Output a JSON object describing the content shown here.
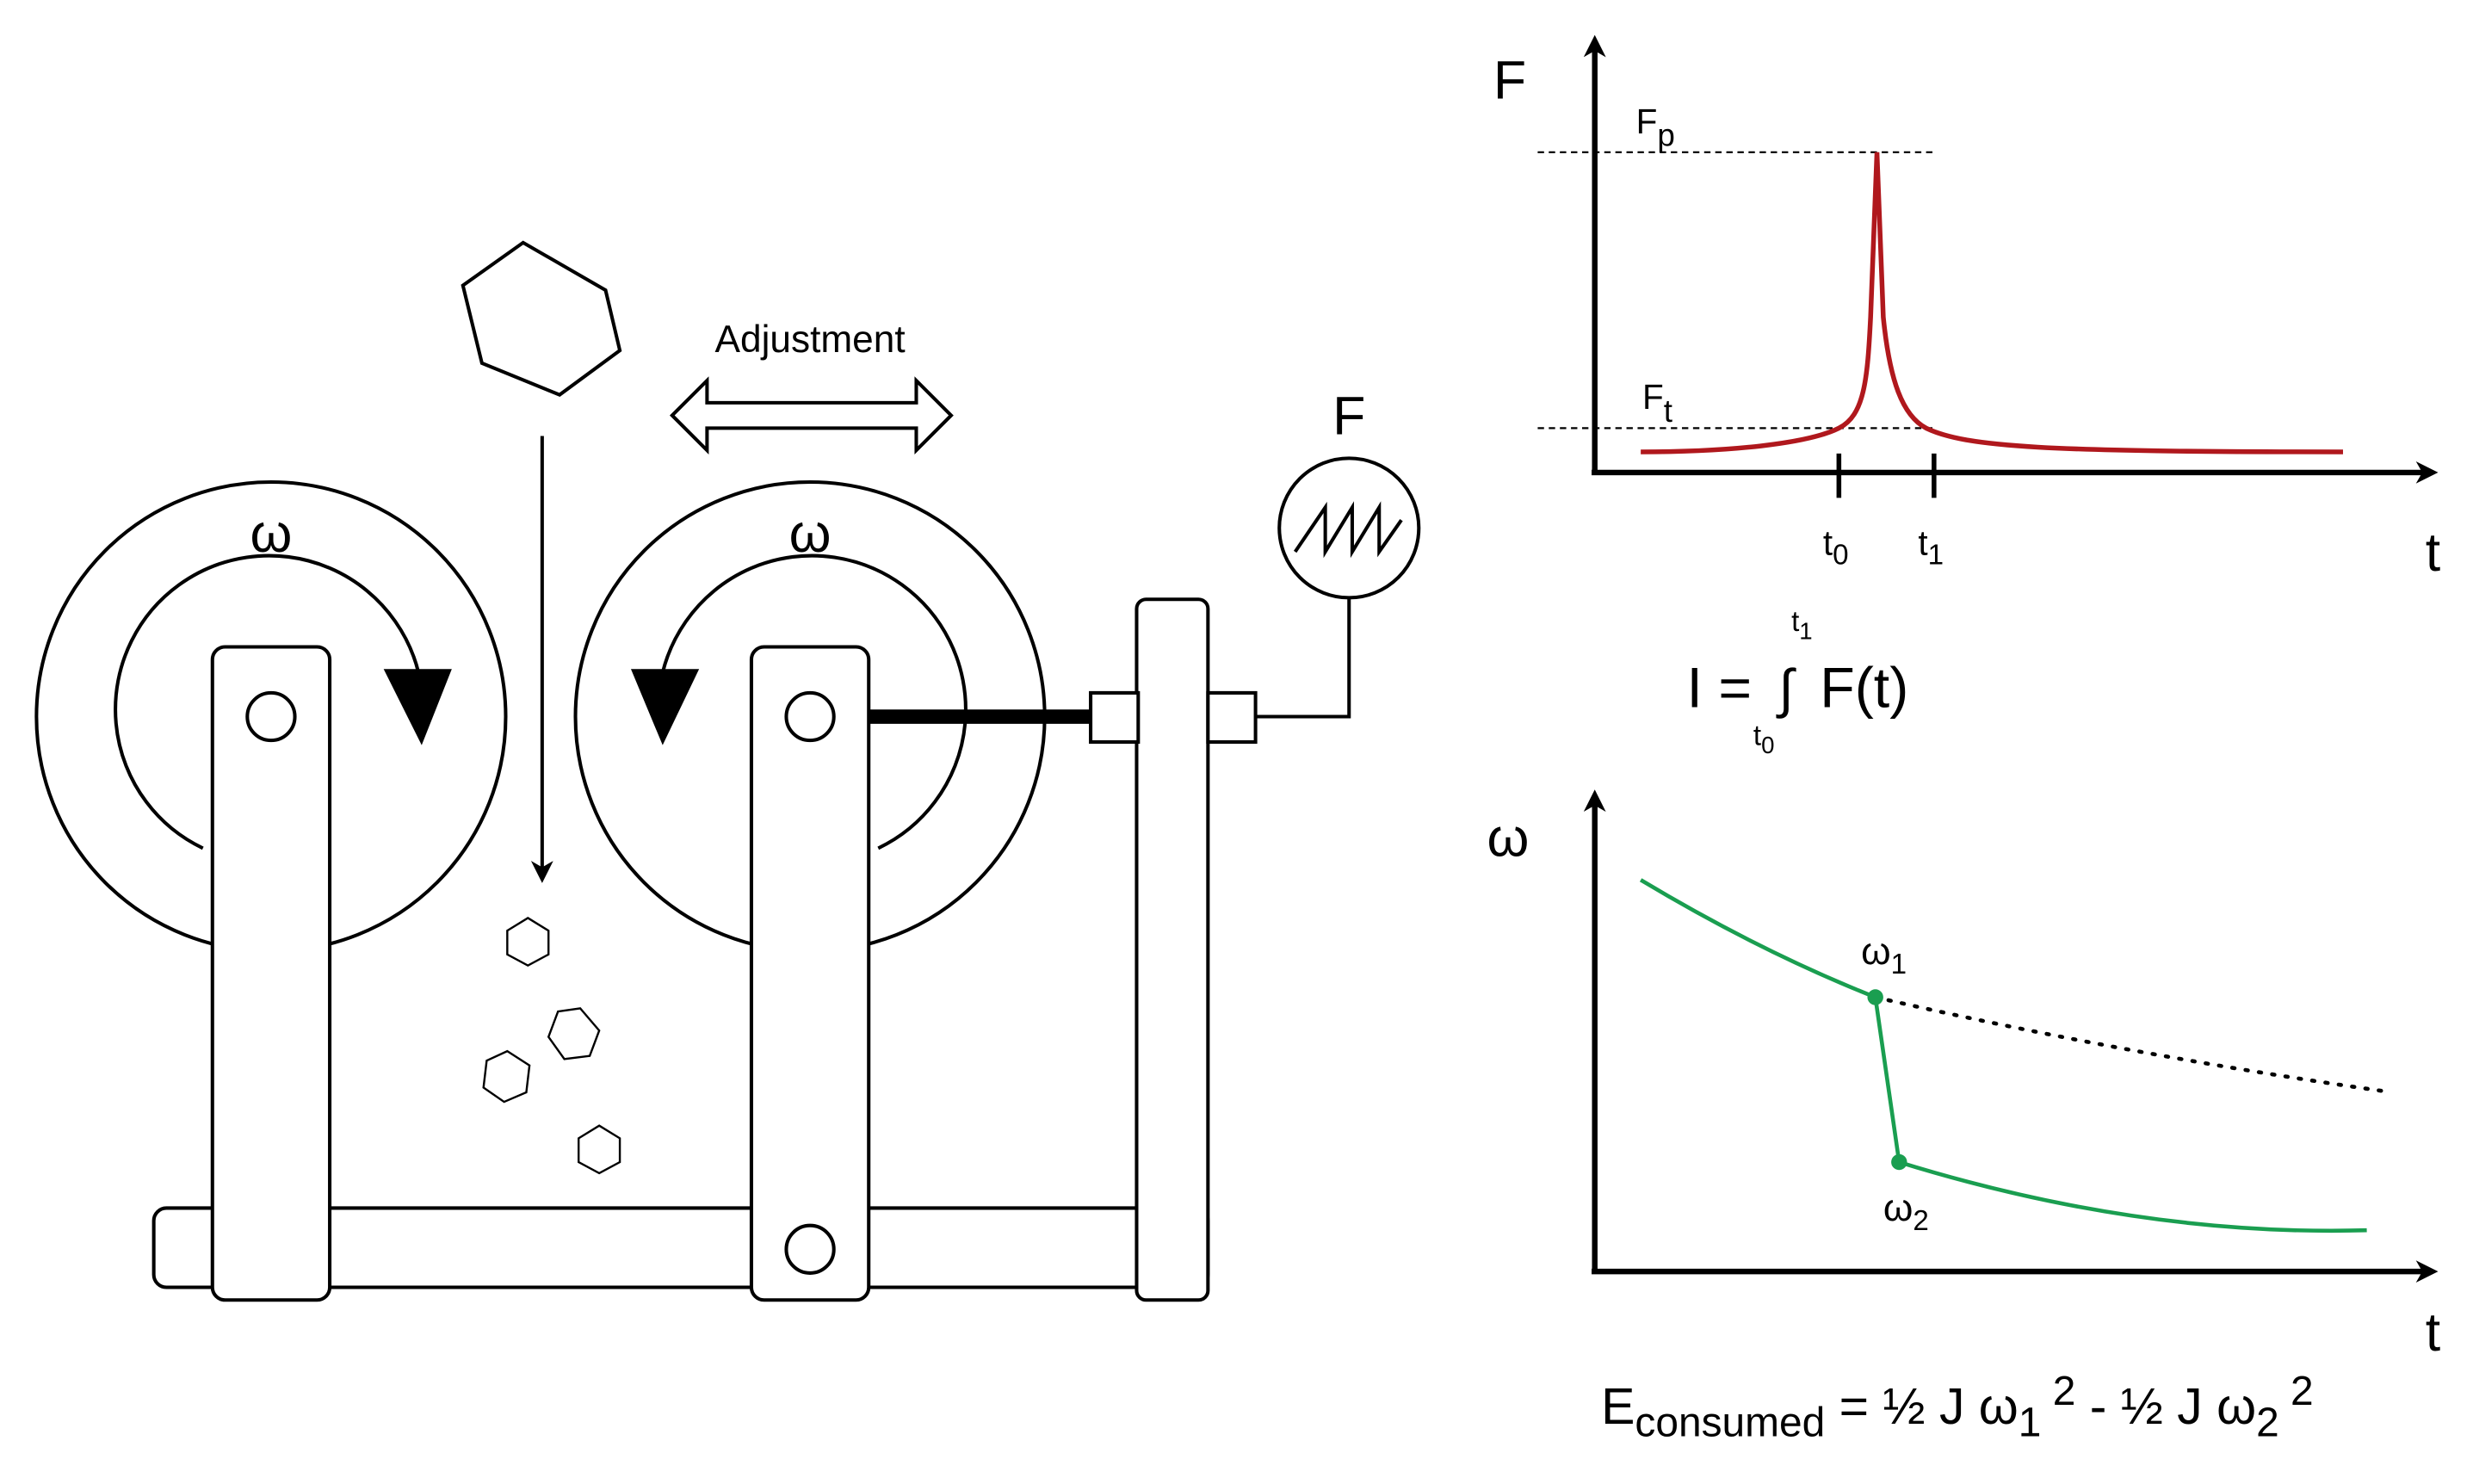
{
  "machine": {
    "adjustment_label": "Adjustment",
    "left_roller_label": "ω",
    "right_roller_label": "ω",
    "force_gauge_label": "F"
  },
  "force_chart": {
    "y_label": "F",
    "x_label": "t",
    "peak_label": "F",
    "peak_sub": "p",
    "threshold_label": "F",
    "threshold_sub": "t",
    "t0_label": "t",
    "t0_sub": "0",
    "t1_label": "t",
    "t1_sub": "1",
    "curve_color": "#b0181d"
  },
  "impulse_formula": {
    "lhs": "I =",
    "integral": "∫",
    "upper": "t",
    "upper_sub": "1",
    "lower": "t",
    "lower_sub": "0",
    "integrand": "F(t)"
  },
  "omega_chart": {
    "y_label": "ω",
    "x_label": "t",
    "w1_label": "ω",
    "w1_sub": "1",
    "w2_label": "ω",
    "w2_sub": "2",
    "curve_color": "#1a9e50"
  },
  "energy_formula": {
    "e": "E",
    "e_sub": "consumed",
    "part1": " = ½ J ω",
    "sub1": "1",
    "sup1": " 2",
    "part2": " - ½ J ω",
    "sub2": "2",
    "sup2": " 2"
  }
}
